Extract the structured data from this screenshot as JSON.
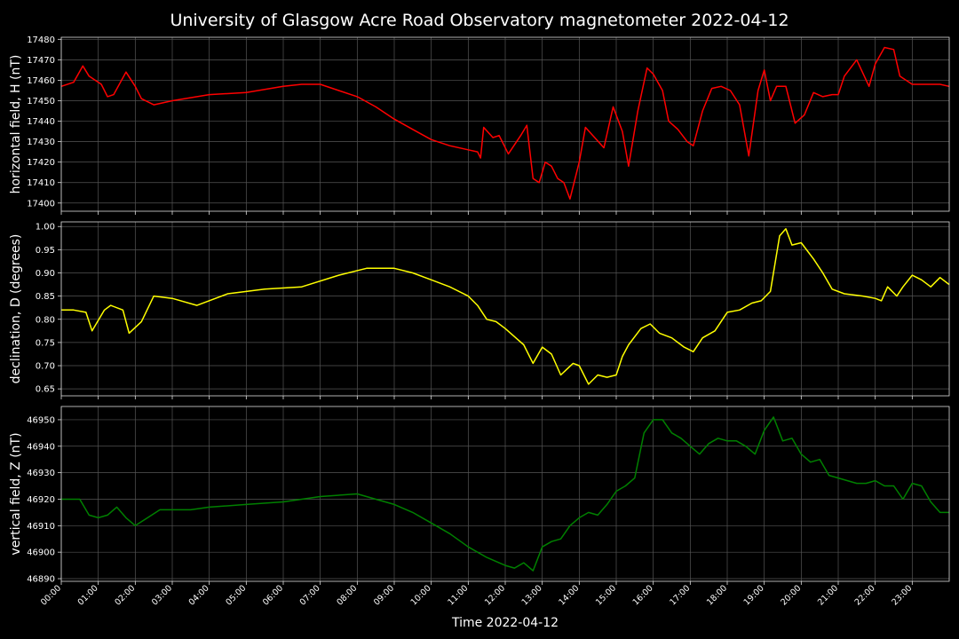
{
  "chart_data": {
    "title": "University of Glasgow Acre Road Observatory magnetometer 2022-04-12",
    "type": "line",
    "xlabel": "Time 2022-04-12",
    "x_ticks": [
      "00:00",
      "01:00",
      "02:00",
      "03:00",
      "04:00",
      "05:00",
      "06:00",
      "07:00",
      "08:00",
      "09:00",
      "10:00",
      "11:00",
      "12:00",
      "13:00",
      "14:00",
      "15:00",
      "16:00",
      "17:00",
      "18:00",
      "19:00",
      "20:00",
      "21:00",
      "22:00",
      "23:00"
    ],
    "xlim": [
      "00:00",
      "24:00"
    ],
    "grid": true,
    "panels": [
      {
        "ylabel": "horizontal field, H (nT)",
        "color": "#ff0000",
        "ylim": [
          17396,
          17481
        ],
        "yticks": [
          "17400",
          "17410",
          "17420",
          "17430",
          "17440",
          "17450",
          "17460",
          "17470",
          "17480"
        ],
        "series": {
          "x": [
            "00:00",
            "00:20",
            "00:35",
            "00:45",
            "01:05",
            "01:15",
            "01:25",
            "01:45",
            "02:00",
            "02:10",
            "02:30",
            "03:00",
            "04:00",
            "05:00",
            "06:00",
            "06:30",
            "07:00",
            "07:30",
            "08:00",
            "08:30",
            "09:00",
            "09:30",
            "10:00",
            "10:30",
            "11:00",
            "11:15",
            "11:20",
            "11:25",
            "11:40",
            "11:50",
            "12:05",
            "12:25",
            "12:35",
            "12:45",
            "12:55",
            "13:05",
            "13:15",
            "13:25",
            "13:35",
            "13:45",
            "14:00",
            "14:10",
            "14:25",
            "14:40",
            "14:55",
            "15:10",
            "15:20",
            "15:35",
            "15:50",
            "16:00",
            "16:15",
            "16:25",
            "16:40",
            "16:55",
            "17:05",
            "17:20",
            "17:35",
            "17:50",
            "18:05",
            "18:20",
            "18:35",
            "18:50",
            "19:00",
            "19:10",
            "19:20",
            "19:35",
            "19:50",
            "20:05",
            "20:20",
            "20:35",
            "20:50",
            "21:00",
            "21:10",
            "21:30",
            "21:50",
            "22:00",
            "22:15",
            "22:30",
            "22:40",
            "23:00",
            "23:15",
            "23:30",
            "23:45",
            "24:00"
          ],
          "y": [
            17457,
            17459,
            17467,
            17462,
            17458,
            17452,
            17453,
            17464,
            17457,
            17451,
            17448,
            17450,
            17453,
            17454,
            17457,
            17458,
            17458,
            17455,
            17452,
            17447,
            17441,
            17436,
            17431,
            17428,
            17426,
            17425,
            17422,
            17437,
            17432,
            17433,
            17424,
            17433,
            17438,
            17412,
            17410,
            17420,
            17418,
            17412,
            17410,
            17402,
            17420,
            17437,
            17432,
            17427,
            17447,
            17435,
            17418,
            17445,
            17466,
            17463,
            17455,
            17440,
            17436,
            17430,
            17428,
            17445,
            17456,
            17457,
            17455,
            17448,
            17423,
            17455,
            17465,
            17450,
            17457,
            17457,
            17439,
            17443,
            17454,
            17452,
            17453,
            17453,
            17462,
            17470,
            17457,
            17468,
            17476,
            17475,
            17462,
            17458,
            17458,
            17458,
            17458,
            17457
          ]
        }
      },
      {
        "ylabel": "declination, D (degrees)",
        "color": "#ffff00",
        "ylim": [
          0.635,
          1.01
        ],
        "yticks": [
          "0.65",
          "0.70",
          "0.75",
          "0.80",
          "0.85",
          "0.90",
          "0.95",
          "1.00"
        ],
        "series": {
          "x": [
            "00:00",
            "00:20",
            "00:40",
            "00:50",
            "01:10",
            "01:20",
            "01:40",
            "01:50",
            "02:10",
            "02:30",
            "03:00",
            "03:40",
            "04:30",
            "05:30",
            "06:30",
            "07:30",
            "08:15",
            "09:00",
            "09:30",
            "10:00",
            "10:30",
            "11:00",
            "11:15",
            "11:30",
            "11:45",
            "12:00",
            "12:30",
            "12:45",
            "13:00",
            "13:15",
            "13:30",
            "13:50",
            "14:00",
            "14:15",
            "14:30",
            "14:45",
            "15:00",
            "15:10",
            "15:20",
            "15:40",
            "15:55",
            "16:10",
            "16:30",
            "16:50",
            "17:05",
            "17:20",
            "17:40",
            "18:00",
            "18:20",
            "18:40",
            "18:55",
            "19:10",
            "19:25",
            "19:35",
            "19:45",
            "20:00",
            "20:20",
            "20:35",
            "20:50",
            "21:10",
            "21:40",
            "22:00",
            "22:10",
            "22:20",
            "22:35",
            "22:45",
            "23:00",
            "23:15",
            "23:30",
            "23:45",
            "24:00"
          ],
          "y": [
            0.82,
            0.82,
            0.815,
            0.775,
            0.82,
            0.83,
            0.82,
            0.77,
            0.795,
            0.85,
            0.845,
            0.83,
            0.855,
            0.865,
            0.87,
            0.895,
            0.91,
            0.91,
            0.9,
            0.885,
            0.87,
            0.85,
            0.83,
            0.8,
            0.795,
            0.78,
            0.745,
            0.705,
            0.74,
            0.725,
            0.68,
            0.705,
            0.7,
            0.66,
            0.68,
            0.675,
            0.68,
            0.72,
            0.745,
            0.78,
            0.79,
            0.77,
            0.76,
            0.74,
            0.73,
            0.76,
            0.775,
            0.815,
            0.82,
            0.835,
            0.84,
            0.86,
            0.98,
            0.995,
            0.96,
            0.965,
            0.93,
            0.9,
            0.865,
            0.855,
            0.85,
            0.845,
            0.84,
            0.87,
            0.85,
            0.87,
            0.895,
            0.885,
            0.87,
            0.89,
            0.875
          ]
        }
      },
      {
        "ylabel": "vertical field, Z (nT)",
        "color": "#008000",
        "ylim": [
          46889,
          46955
        ],
        "yticks": [
          "46890",
          "46900",
          "46910",
          "46920",
          "46930",
          "46940",
          "46950"
        ],
        "series": {
          "x": [
            "00:00",
            "00:30",
            "00:45",
            "01:00",
            "01:15",
            "01:30",
            "01:45",
            "02:00",
            "02:20",
            "02:40",
            "03:00",
            "03:30",
            "04:00",
            "05:00",
            "06:00",
            "07:00",
            "08:00",
            "08:30",
            "09:00",
            "09:30",
            "10:00",
            "10:30",
            "11:00",
            "11:30",
            "12:00",
            "12:15",
            "12:30",
            "12:45",
            "13:00",
            "13:15",
            "13:30",
            "13:45",
            "14:00",
            "14:15",
            "14:30",
            "14:45",
            "15:00",
            "15:15",
            "15:30",
            "15:45",
            "16:00",
            "16:15",
            "16:30",
            "16:45",
            "17:00",
            "17:15",
            "17:30",
            "17:45",
            "18:00",
            "18:15",
            "18:30",
            "18:45",
            "19:00",
            "19:15",
            "19:30",
            "19:45",
            "20:00",
            "20:15",
            "20:30",
            "20:45",
            "21:00",
            "21:15",
            "21:30",
            "21:45",
            "22:00",
            "22:15",
            "22:30",
            "22:45",
            "23:00",
            "23:15",
            "23:30",
            "23:45",
            "24:00"
          ],
          "y": [
            46920,
            46920,
            46914,
            46913,
            46914,
            46917,
            46913,
            46910,
            46913,
            46916,
            46916,
            46916,
            46917,
            46918,
            46919,
            46921,
            46922,
            46920,
            46918,
            46915,
            46911,
            46907,
            46902,
            46898,
            46895,
            46894,
            46896,
            46893,
            46902,
            46904,
            46905,
            46910,
            46913,
            46915,
            46914,
            46918,
            46923,
            46925,
            46928,
            46945,
            46950,
            46950,
            46945,
            46943,
            46940,
            46937,
            46941,
            46943,
            46942,
            46942,
            46940,
            46937,
            46946,
            46951,
            46942,
            46943,
            46937,
            46934,
            46935,
            46929,
            46928,
            46927,
            46926,
            46926,
            46927,
            46925,
            46925,
            46920,
            46926,
            46925,
            46919,
            46915,
            46915
          ]
        }
      }
    ]
  }
}
